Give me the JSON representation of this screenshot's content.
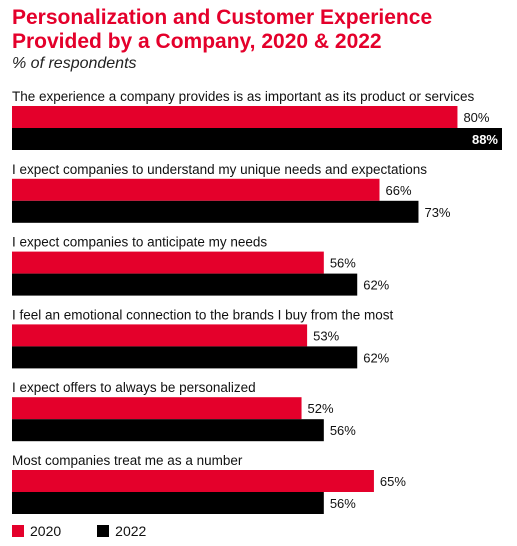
{
  "chart_data": {
    "type": "bar",
    "orientation": "horizontal",
    "title": "Personalization and Customer Experience Provided by a Company, 2020 & 2022",
    "subtitle": "% of respondents",
    "categories": [
      "The experience a company provides is as important as its product or services",
      "I expect companies to understand my unique needs and expectations",
      "I expect companies to anticipate my needs",
      "I feel an emotional connection to the brands I buy from the most",
      "I expect offers to always be personalized",
      "Most companies treat me as a number"
    ],
    "series": [
      {
        "name": "2020",
        "color": "#e4002b",
        "values": [
          80,
          66,
          56,
          53,
          52,
          65
        ]
      },
      {
        "name": "2022",
        "color": "#000000",
        "values": [
          88,
          73,
          62,
          62,
          56,
          56
        ]
      }
    ],
    "value_suffix": "%",
    "xlim": [
      0,
      88
    ],
    "grid": false,
    "legend_placement": "bottom-left"
  }
}
